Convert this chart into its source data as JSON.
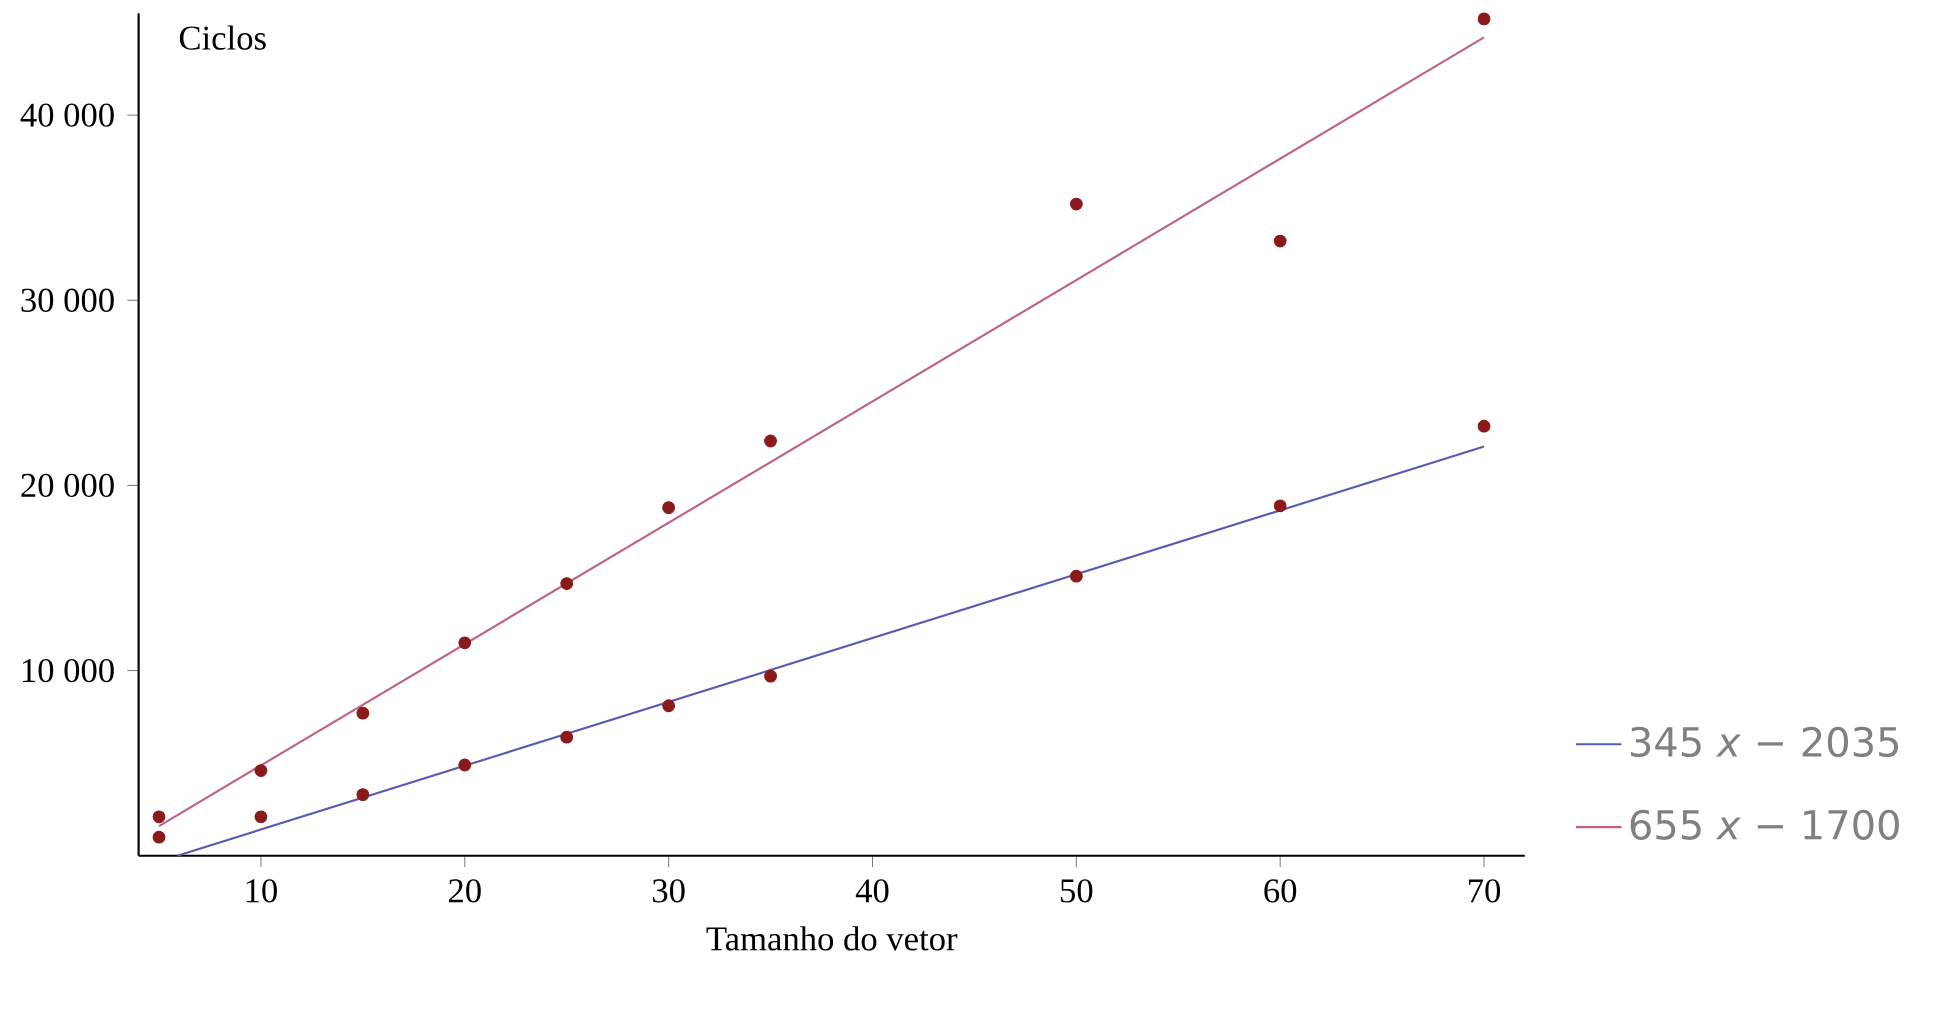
{
  "chart_data": {
    "type": "scatter",
    "xlabel": "Tamanho do vetor",
    "ylabel": "Ciclos",
    "xlim": [
      4,
      72
    ],
    "ylim": [
      0,
      45500
    ],
    "xticks": [
      10,
      20,
      30,
      40,
      50,
      60,
      70
    ],
    "yticks": [
      {
        "value": 10000,
        "label": "10 000"
      },
      {
        "value": 20000,
        "label": "20 000"
      },
      {
        "value": 30000,
        "label": "30 000"
      },
      {
        "value": 40000,
        "label": "40 000"
      }
    ],
    "legend": "bottom right",
    "grid": false,
    "marker": "circle",
    "series": [
      {
        "color": "#8b1a1a",
        "x": [
          5,
          10,
          15,
          20,
          25,
          30,
          35,
          50,
          60,
          70
        ],
        "values": [
          1000,
          2100,
          3300,
          4900,
          6400,
          8100,
          9700,
          15100,
          18900,
          23200
        ]
      },
      {
        "color": "#8b1a1a",
        "x": [
          5,
          10,
          15,
          20,
          25,
          30,
          35,
          50,
          60,
          70
        ],
        "values": [
          2100,
          4600,
          7700,
          11500,
          14700,
          18800,
          22400,
          35200,
          33200,
          45200
        ]
      },
      {
        "type": "line",
        "name": "345 *x* − 2035",
        "color": "#5a5ab4",
        "marker": "none",
        "x": [
          5.9,
          70
        ],
        "values": [
          0,
          22100
        ]
      },
      {
        "type": "line",
        "name": "655 *x* − 1700",
        "color": "#c0608a",
        "marker": "none",
        "x": [
          5,
          70
        ],
        "values": [
          1600,
          44200
        ]
      }
    ]
  }
}
